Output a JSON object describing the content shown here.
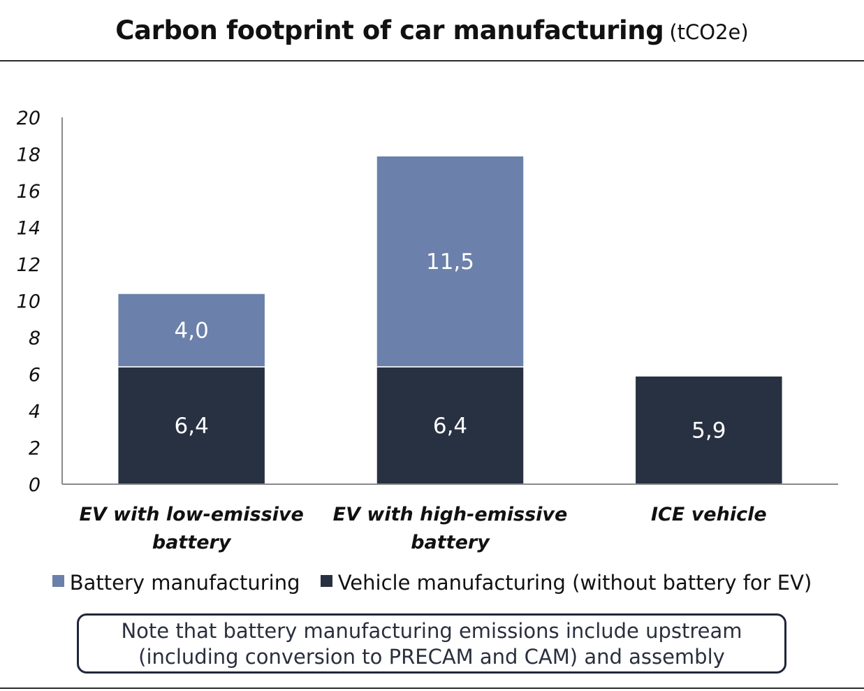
{
  "title": {
    "main": "Carbon footprint of car manufacturing",
    "unit": "(tCO2e)"
  },
  "colors": {
    "battery": "#6b80aa",
    "vehicle": "#283142",
    "axis": "#8a8a8a",
    "rule": "#2b2b2b"
  },
  "legend": [
    {
      "label": "Battery manufacturing",
      "color": "#6b80aa"
    },
    {
      "label": "Vehicle manufacturing (without battery for EV)",
      "color": "#283142"
    }
  ],
  "note": {
    "line1": "Note that battery manufacturing emissions include upstream",
    "line2": "(including conversion to PRECAM and CAM) and assembly"
  },
  "chart_data": {
    "type": "bar",
    "stacked": true,
    "categories": [
      [
        "EV with low-emissive",
        "battery"
      ],
      [
        "EV with high-emissive",
        "battery"
      ],
      [
        "ICE vehicle"
      ]
    ],
    "series": [
      {
        "name": "Vehicle manufacturing (without battery for EV)",
        "values": [
          6.4,
          6.4,
          5.9
        ],
        "labels": [
          "6,4",
          "6,4",
          "5,9"
        ],
        "color": "#283142"
      },
      {
        "name": "Battery manufacturing",
        "values": [
          4.0,
          11.5,
          0
        ],
        "labels": [
          "4,0",
          "11,5",
          ""
        ],
        "color": "#6b80aa"
      }
    ],
    "ylim": [
      0,
      20
    ],
    "yticks": [
      0,
      2,
      4,
      6,
      8,
      10,
      12,
      14,
      16,
      18,
      20
    ],
    "grid": false,
    "legend_position": "bottom"
  }
}
